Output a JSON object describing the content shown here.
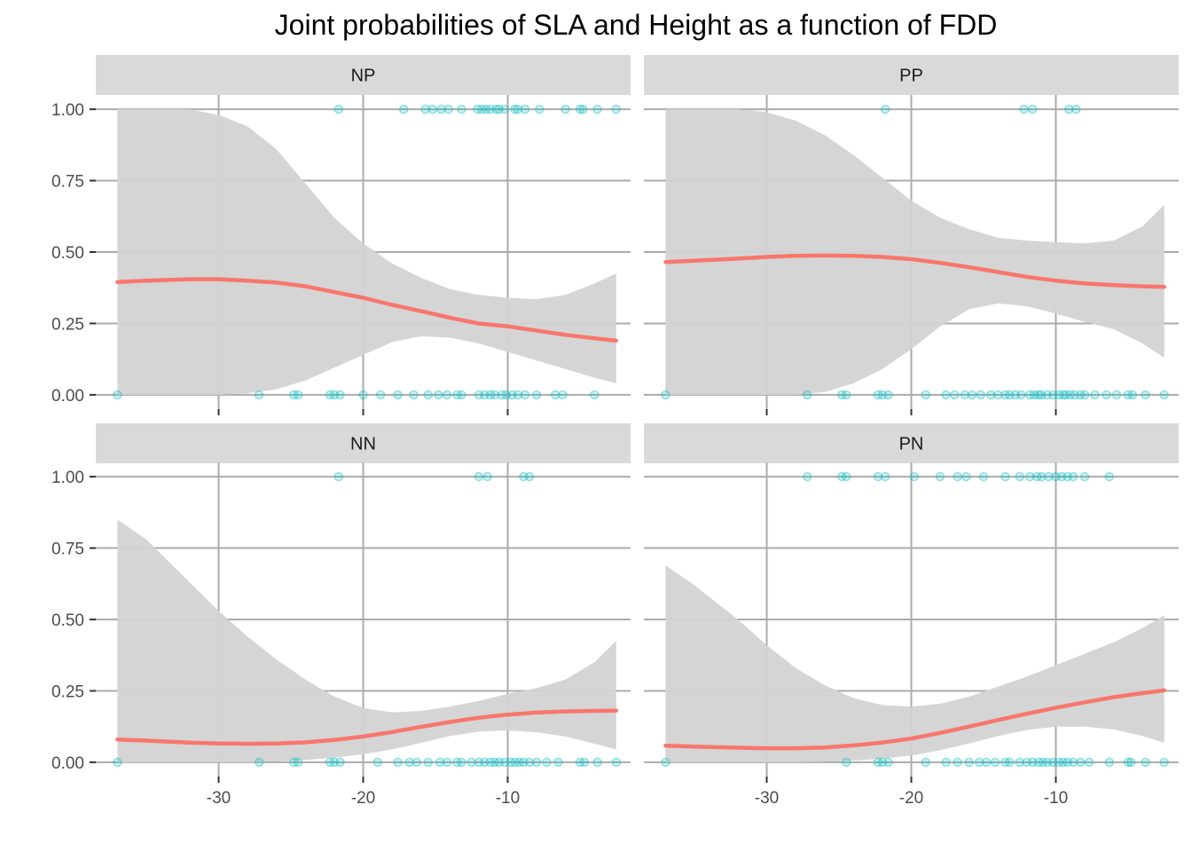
{
  "chart_data": {
    "type": "scatter",
    "title": "Joint probabilities of SLA and Height as a function of FDD",
    "xlabel": "",
    "ylabel": "",
    "xlim": [
      -38.5,
      -1.5
    ],
    "ylim": [
      -0.05,
      1.05
    ],
    "x_ticks": [
      -30,
      -20,
      -10
    ],
    "x_tick_labels": [
      "-30",
      "-20",
      "-10"
    ],
    "y_ticks": [
      0,
      0.25,
      0.5,
      0.75,
      1
    ],
    "y_tick_labels": [
      "0.00",
      "0.25",
      "0.50",
      "0.75",
      "1.00"
    ],
    "grid": true,
    "legend": "none",
    "colors": {
      "points": "#00BFC4",
      "fit_line": "#F8766D",
      "ribbon": "#d3d3d3",
      "strip": "#d9d9d9",
      "grid": "#ababab",
      "background": "#ffffff"
    },
    "panels": [
      {
        "label": "NP",
        "points_y1_x": [
          -21.7,
          -17.2,
          -15.7,
          -15.2,
          -14.6,
          -14.1,
          -13.2,
          -12.1,
          -11.8,
          -11.5,
          -11.2,
          -10.8,
          -10.6,
          -10.2,
          -9.5,
          -9.3,
          -8.8,
          -7.8,
          -6.0,
          -5.0,
          -4.8,
          -3.8,
          -2.5
        ],
        "points_y0_x": [
          -37.0,
          -27.2,
          -24.8,
          -24.5,
          -22.3,
          -22.0,
          -21.6,
          -20.0,
          -18.8,
          -17.6,
          -16.5,
          -15.5,
          -14.8,
          -14.2,
          -13.5,
          -13.2,
          -12.0,
          -11.6,
          -11.2,
          -10.9,
          -10.4,
          -10.1,
          -9.7,
          -9.3,
          -8.8,
          -8.0,
          -6.7,
          -6.2,
          -4.0
        ],
        "fit_x": [
          -37.0,
          -35.0,
          -32.0,
          -30.0,
          -28.0,
          -26.0,
          -24.0,
          -22.0,
          -20.0,
          -18.0,
          -16.0,
          -14.0,
          -12.0,
          -10.0,
          -8.0,
          -6.0,
          -4.0,
          -2.5
        ],
        "fit_y": [
          0.395,
          0.4,
          0.405,
          0.405,
          0.4,
          0.393,
          0.38,
          0.36,
          0.34,
          0.315,
          0.293,
          0.27,
          0.25,
          0.24,
          0.225,
          0.21,
          0.198,
          0.19
        ],
        "ci_lower": [
          0.0,
          0.0,
          0.0,
          0.0,
          0.005,
          0.02,
          0.05,
          0.095,
          0.14,
          0.185,
          0.205,
          0.2,
          0.18,
          0.15,
          0.12,
          0.09,
          0.06,
          0.04
        ],
        "ci_upper": [
          1.0,
          1.0,
          1.0,
          0.98,
          0.94,
          0.86,
          0.74,
          0.62,
          0.53,
          0.46,
          0.41,
          0.37,
          0.35,
          0.34,
          0.335,
          0.35,
          0.39,
          0.425
        ]
      },
      {
        "label": "PP",
        "points_y1_x": [
          -21.8,
          -12.2,
          -11.6,
          -9.1,
          -8.6
        ],
        "points_y0_x": [
          -37.0,
          -27.2,
          -24.8,
          -24.5,
          -22.3,
          -22.0,
          -21.6,
          -19.0,
          -17.6,
          -17.0,
          -16.3,
          -15.8,
          -15.2,
          -14.5,
          -14.0,
          -13.5,
          -13.2,
          -12.8,
          -12.4,
          -11.8,
          -11.5,
          -11.2,
          -11.0,
          -10.6,
          -10.2,
          -9.8,
          -9.5,
          -9.3,
          -9.0,
          -8.7,
          -8.3,
          -8.0,
          -7.3,
          -6.5,
          -5.8,
          -5.0,
          -4.7,
          -3.8,
          -2.5
        ],
        "fit_x": [
          -37.0,
          -35.0,
          -32.0,
          -30.0,
          -28.0,
          -26.0,
          -24.0,
          -22.0,
          -20.0,
          -18.0,
          -16.0,
          -14.0,
          -12.0,
          -10.0,
          -8.0,
          -6.0,
          -4.0,
          -2.5
        ],
        "fit_y": [
          0.465,
          0.47,
          0.477,
          0.483,
          0.487,
          0.488,
          0.487,
          0.483,
          0.475,
          0.462,
          0.447,
          0.43,
          0.413,
          0.4,
          0.39,
          0.384,
          0.38,
          0.378
        ],
        "ci_lower": [
          0.0,
          0.0,
          0.0,
          0.0,
          0.0,
          0.01,
          0.04,
          0.09,
          0.16,
          0.24,
          0.3,
          0.32,
          0.31,
          0.285,
          0.255,
          0.23,
          0.18,
          0.13
        ],
        "ci_upper": [
          1.0,
          1.0,
          1.0,
          0.99,
          0.96,
          0.91,
          0.84,
          0.76,
          0.68,
          0.62,
          0.58,
          0.55,
          0.54,
          0.535,
          0.53,
          0.54,
          0.59,
          0.665
        ]
      },
      {
        "label": "NN",
        "points_y1_x": [
          -21.7,
          -12.0,
          -11.4,
          -8.9,
          -8.5
        ],
        "points_y0_x": [
          -37.0,
          -27.2,
          -24.8,
          -24.5,
          -22.3,
          -22.0,
          -21.6,
          -19.0,
          -17.6,
          -16.8,
          -16.3,
          -15.5,
          -14.7,
          -14.2,
          -13.5,
          -13.2,
          -12.5,
          -12.0,
          -11.6,
          -11.2,
          -10.9,
          -10.6,
          -10.2,
          -9.8,
          -9.5,
          -9.2,
          -8.9,
          -8.5,
          -8.0,
          -7.3,
          -6.5,
          -5.0,
          -4.7,
          -3.8,
          -2.5
        ],
        "fit_x": [
          -37.0,
          -35.0,
          -32.0,
          -30.0,
          -28.0,
          -26.0,
          -24.0,
          -22.0,
          -20.0,
          -18.0,
          -16.0,
          -14.0,
          -12.0,
          -10.0,
          -8.0,
          -6.0,
          -4.0,
          -2.5
        ],
        "fit_y": [
          0.08,
          0.076,
          0.069,
          0.066,
          0.065,
          0.066,
          0.07,
          0.078,
          0.09,
          0.106,
          0.124,
          0.141,
          0.156,
          0.167,
          0.174,
          0.178,
          0.18,
          0.181
        ],
        "ci_lower": [
          0.0,
          0.0,
          0.0,
          0.0,
          0.0,
          0.003,
          0.008,
          0.016,
          0.028,
          0.045,
          0.068,
          0.092,
          0.108,
          0.112,
          0.105,
          0.09,
          0.065,
          0.045
        ],
        "ci_upper": [
          0.85,
          0.78,
          0.63,
          0.53,
          0.44,
          0.36,
          0.29,
          0.23,
          0.19,
          0.175,
          0.18,
          0.195,
          0.215,
          0.24,
          0.26,
          0.29,
          0.35,
          0.425
        ]
      },
      {
        "label": "PN",
        "points_y1_x": [
          -27.2,
          -24.8,
          -24.5,
          -22.3,
          -21.8,
          -19.8,
          -18.0,
          -16.8,
          -16.2,
          -15.0,
          -13.5,
          -12.5,
          -11.8,
          -11.3,
          -11.0,
          -10.5,
          -10.0,
          -9.6,
          -9.2,
          -8.8,
          -8.0,
          -6.3
        ],
        "points_y0_x": [
          -37.0,
          -24.5,
          -22.3,
          -22.0,
          -21.6,
          -19.0,
          -17.6,
          -16.8,
          -16.0,
          -15.3,
          -14.8,
          -14.2,
          -13.5,
          -13.2,
          -12.5,
          -12.0,
          -11.6,
          -11.2,
          -10.9,
          -10.6,
          -10.2,
          -9.8,
          -9.5,
          -9.2,
          -8.8,
          -8.3,
          -7.7,
          -6.3,
          -5.0,
          -4.8,
          -3.8,
          -2.5
        ],
        "fit_x": [
          -37.0,
          -35.0,
          -32.0,
          -30.0,
          -28.0,
          -26.0,
          -24.0,
          -22.0,
          -20.0,
          -18.0,
          -16.0,
          -14.0,
          -12.0,
          -10.0,
          -8.0,
          -6.0,
          -4.0,
          -2.5
        ],
        "fit_y": [
          0.058,
          0.055,
          0.051,
          0.049,
          0.049,
          0.052,
          0.059,
          0.069,
          0.083,
          0.103,
          0.125,
          0.148,
          0.17,
          0.191,
          0.21,
          0.228,
          0.242,
          0.252
        ],
        "ci_lower": [
          0.0,
          0.0,
          0.0,
          0.0,
          0.0,
          0.002,
          0.006,
          0.013,
          0.024,
          0.042,
          0.066,
          0.092,
          0.113,
          0.125,
          0.125,
          0.115,
          0.092,
          0.068
        ],
        "ci_upper": [
          0.69,
          0.62,
          0.5,
          0.41,
          0.33,
          0.27,
          0.225,
          0.2,
          0.195,
          0.205,
          0.23,
          0.265,
          0.3,
          0.34,
          0.38,
          0.42,
          0.47,
          0.515
        ]
      }
    ]
  }
}
